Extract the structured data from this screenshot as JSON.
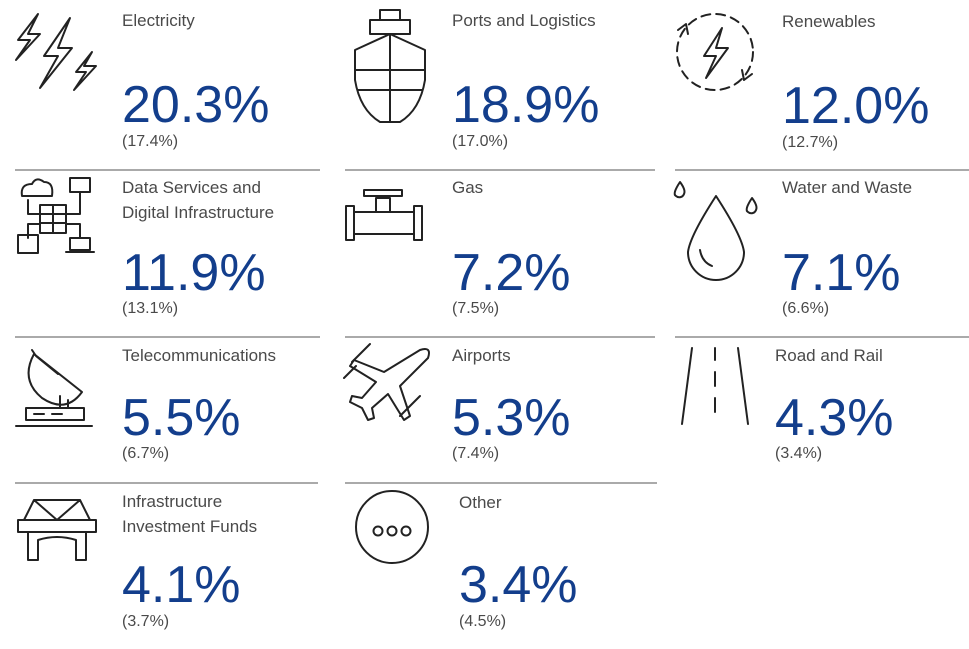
{
  "sectors": [
    {
      "label": [
        "Electricity"
      ],
      "value": "20.3%",
      "previous": "(17.4%)"
    },
    {
      "label": [
        "Ports and Logistics"
      ],
      "value": "18.9%",
      "previous": "(17.0%)"
    },
    {
      "label": [
        "Renewables"
      ],
      "value": "12.0%",
      "previous": "(12.7%)"
    },
    {
      "label": [
        "Data Services and",
        "Digital Infrastructure"
      ],
      "value": "11.9%",
      "previous": "(13.1%)"
    },
    {
      "label": [
        "Gas"
      ],
      "value": "7.2%",
      "previous": "(7.5%)"
    },
    {
      "label": [
        "Water and Waste"
      ],
      "value": "7.1%",
      "previous": "(6.6%)"
    },
    {
      "label": [
        "Telecommunications"
      ],
      "value": "5.5%",
      "previous": "(6.7%)"
    },
    {
      "label": [
        "Airports"
      ],
      "value": "5.3%",
      "previous": "(7.4%)"
    },
    {
      "label": [
        "Road and Rail"
      ],
      "value": "4.3%",
      "previous": "(3.4%)"
    },
    {
      "label": [
        "Infrastructure",
        "Investment Funds"
      ],
      "value": "4.1%",
      "previous": "(3.7%)"
    },
    {
      "label": [
        "Other"
      ],
      "value": "3.4%",
      "previous": "(4.5%)"
    }
  ]
}
